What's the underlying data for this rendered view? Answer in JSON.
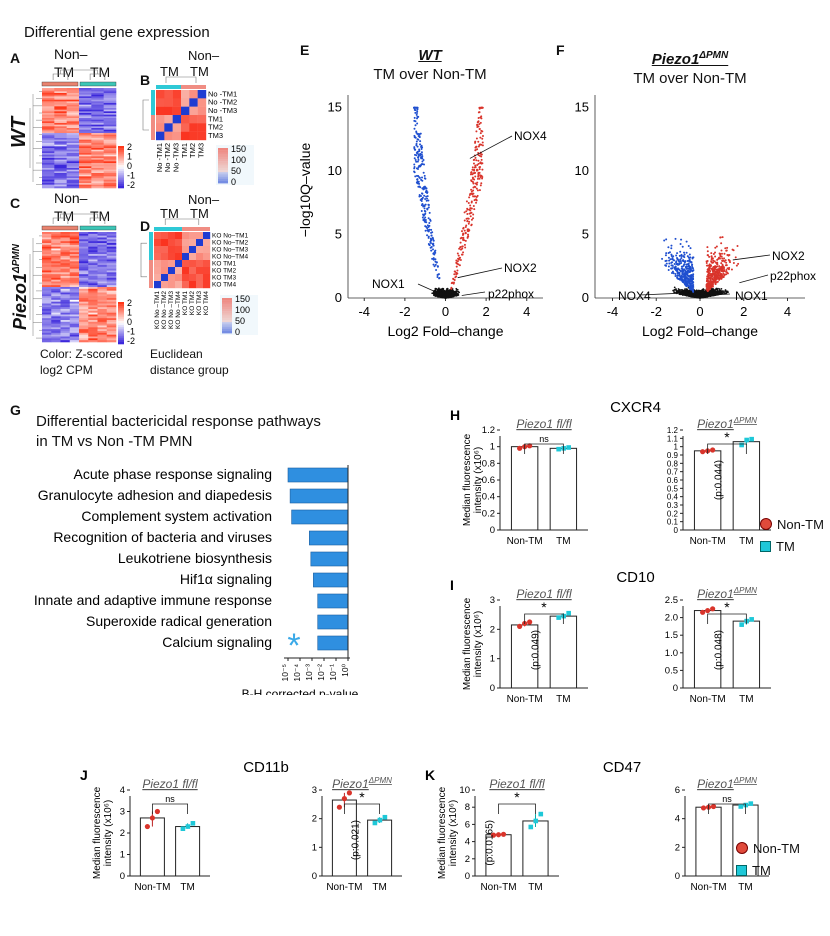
{
  "heat": {
    "title": "Differential gene expression",
    "labels": {
      "A": "A",
      "B": "B",
      "C": "C",
      "D": "D"
    },
    "row_wt": "WT",
    "row_piezo": "Piezo1",
    "row_piezo_sup": "ΔPMN",
    "col_nontm": "Non–",
    "col_nontm2": "TM",
    "col_tm": "TM",
    "b_col_tm": "TM",
    "b_col_non": "Non–",
    "b_col_non2": "TM",
    "b_rows": [
      "No -TM1",
      "No -TM2",
      "No -TM3",
      "TM1",
      "TM2",
      "TM3"
    ],
    "b_cols": [
      "No -TM1",
      "No -TM2",
      "No -TM3",
      "TM1",
      "TM2",
      "TM3"
    ],
    "d_rows": [
      "KO No–TM1",
      "KO No–TM2",
      "KO No–TM3",
      "KO No–TM4",
      "KO TM1",
      "KO TM2",
      "KO TM3",
      "KO TM4"
    ],
    "d_cols": [
      "KO No –TM1",
      "KO No –TM2",
      "KO No –TM3",
      "KO No –TM4",
      "KO TM1",
      "KO TM2",
      "KO TM3",
      "KO TM4"
    ],
    "z_ticks": [
      "2",
      "1",
      "0",
      "-1",
      "-2"
    ],
    "dist_ticks": [
      "150",
      "100",
      "50",
      "0"
    ],
    "color_note1": "Color: Z-scored",
    "color_note2": "log2 CPM",
    "dist_note1": "Euclidean",
    "dist_note2": "distance group"
  },
  "volcano": {
    "e_label": "E",
    "f_label": "F",
    "e_title1": "WT",
    "e_title2": "TM over Non-TM",
    "f_title1": "Piezo1",
    "f_title1_sup": "ΔPMN",
    "f_title2": "TM over Non-TM",
    "ylabel": "−log10Q–value",
    "xlabel": "Log2 Fold–change",
    "x_ticks": [
      "-4",
      "-2",
      "0",
      "2",
      "4"
    ],
    "y_ticks": [
      "0",
      "5",
      "10",
      "15"
    ],
    "e_annot": [
      "NOX4",
      "NOX2",
      "NOX1",
      "p22phox"
    ],
    "f_annot": [
      "NOX2",
      "p22phox",
      "NOX4",
      "NOX1"
    ]
  },
  "chart_data": [
    {
      "type": "bar",
      "title": "Differential bactericidal response pathways in TM vs Non -TM PMN",
      "title_line1": "Differential bactericidal response pathways",
      "title_line2": "in TM vs Non -TM PMN",
      "label": "G",
      "orientation": "horizontal",
      "categories": [
        "Acute phase response signaling",
        "Granulocyte adhesion and diapedesis",
        "Complement system activation",
        "Recognition of bacteria and viruses",
        "Leukotriene biosynthesis",
        "Hif1α signaling",
        "Innate and adaptive immune response",
        "Superoxide radical generation",
        "Calcium signaling"
      ],
      "values": [
        1e-05,
        1.5e-05,
        2e-05,
        0.0006,
        0.0008,
        0.0013,
        0.003,
        0.003,
        0.003
      ],
      "xscale": "log",
      "xlim": [
        1e-05,
        1
      ],
      "x_ticks": [
        "10⁻⁵",
        "10⁻⁴",
        "10⁻³",
        "10⁻²",
        "10⁻¹",
        "10⁰"
      ],
      "xlabel": "B-H corrected p-value",
      "star": "*"
    },
    {
      "type": "bar",
      "label": "H",
      "title": "CXCR4",
      "ylabel1": "Median fluorescence",
      "ylabel2": "intensity (x10⁶)",
      "panels": [
        {
          "title": "Piezo1 fl/fl",
          "categories": [
            "Non-TM",
            "TM"
          ],
          "values": [
            1.0,
            0.98
          ],
          "points": [
            [
              0.98,
              1.0,
              1.01
            ],
            [
              0.97,
              0.98,
              0.99
            ]
          ],
          "ylim": [
            0,
            1.2
          ],
          "y_ticks": [
            "0",
            "0.2",
            "0.4",
            "0.6",
            "0.8",
            "1",
            "1.2"
          ],
          "sig": "ns",
          "pval": ""
        },
        {
          "title": "Piezo1",
          "title_sup": "ΔPMN",
          "categories": [
            "Non-TM",
            "TM"
          ],
          "values": [
            0.95,
            1.06
          ],
          "points": [
            [
              0.94,
              0.95,
              0.96
            ],
            [
              1.02,
              1.08,
              1.09
            ]
          ],
          "ylim": [
            0,
            1.2
          ],
          "y_ticks": [
            "0",
            "0.1",
            "0.2",
            "0.3",
            "0.4",
            "0.5",
            "0.6",
            "0.7",
            "0.8",
            "0.9",
            "1",
            "1.1",
            "1.2"
          ],
          "sig": "*",
          "pval": "(p:0.044)"
        }
      ]
    },
    {
      "type": "bar",
      "label": "I",
      "title": "CD10",
      "ylabel1": "Median fluorescence",
      "ylabel2": "intensity (x10⁶)",
      "panels": [
        {
          "title": "Piezo1 fl/fl",
          "categories": [
            "Non-TM",
            "TM"
          ],
          "values": [
            2.15,
            2.45
          ],
          "points": [
            [
              2.1,
              2.2,
              2.25
            ],
            [
              2.4,
              2.45,
              2.55
            ]
          ],
          "ylim": [
            0,
            3
          ],
          "y_ticks": [
            "0",
            "1",
            "2",
            "3"
          ],
          "sig": "*",
          "pval": "(p:0.049)"
        },
        {
          "title": "Piezo1",
          "title_sup": "ΔPMN",
          "categories": [
            "Non-TM",
            "TM"
          ],
          "values": [
            2.2,
            1.9
          ],
          "points": [
            [
              2.15,
              2.2,
              2.25
            ],
            [
              1.8,
              1.9,
              1.95
            ]
          ],
          "ylim": [
            0,
            2.5
          ],
          "y_ticks": [
            "0",
            "0.5",
            "1.0",
            "1.5",
            "2.0",
            "2.5"
          ],
          "sig": "*",
          "pval": "(p:0.048)"
        }
      ]
    },
    {
      "type": "bar",
      "label": "J",
      "title": "CD11b",
      "ylabel1": "Median fluorescence",
      "ylabel2": "intensity (x10⁶)",
      "panels": [
        {
          "title": "Piezo1 fl/fl",
          "categories": [
            "Non-TM",
            "TM"
          ],
          "values": [
            2.7,
            2.3
          ],
          "points": [
            [
              2.3,
              2.7,
              3.0
            ],
            [
              2.2,
              2.3,
              2.45
            ]
          ],
          "ylim": [
            0,
            4
          ],
          "y_ticks": [
            "0",
            "1",
            "2",
            "3",
            "4"
          ],
          "sig": "ns",
          "pval": ""
        },
        {
          "title": "Piezo1",
          "title_sup": "ΔPMN",
          "categories": [
            "Non-TM",
            "TM"
          ],
          "values": [
            2.65,
            1.95
          ],
          "points": [
            [
              2.4,
              2.7,
              2.9
            ],
            [
              1.85,
              1.95,
              2.05
            ]
          ],
          "ylim": [
            0,
            3
          ],
          "y_ticks": [
            "0",
            "1",
            "2",
            "3"
          ],
          "sig": "*",
          "pval": "(p:0.021)"
        }
      ]
    },
    {
      "type": "bar",
      "label": "K",
      "title": "CD47",
      "ylabel1": "Median fluorescence",
      "ylabel2": "intensity (x10⁶)",
      "panels": [
        {
          "title": "Piezo1 fl/fl",
          "categories": [
            "Non-TM",
            "TM"
          ],
          "values": [
            4.8,
            6.4
          ],
          "points": [
            [
              4.75,
              4.8,
              4.85
            ],
            [
              5.7,
              6.4,
              7.2
            ]
          ],
          "ylim": [
            0,
            10
          ],
          "y_ticks": [
            "0",
            "2",
            "4",
            "6",
            "8",
            "10"
          ],
          "sig": "*",
          "pval": "(p:0.0165)"
        },
        {
          "title": "Piezo1",
          "title_sup": "ΔPMN",
          "categories": [
            "Non-TM",
            "TM"
          ],
          "values": [
            4.8,
            4.95
          ],
          "points": [
            [
              4.75,
              4.8,
              4.85
            ],
            [
              4.85,
              4.95,
              5.05
            ]
          ],
          "ylim": [
            0,
            6
          ],
          "y_ticks": [
            "0",
            "2",
            "4",
            "6"
          ],
          "sig": "ns",
          "pval": ""
        }
      ]
    }
  ],
  "legend": {
    "nontm": "Non-TM",
    "tm": "TM"
  },
  "colors": {
    "red": "#d9342b",
    "blue": "#1f4fcf",
    "teal": "#1ec8d8",
    "bar_blue": "#2f8fe0",
    "star": "#3aa9e8"
  }
}
